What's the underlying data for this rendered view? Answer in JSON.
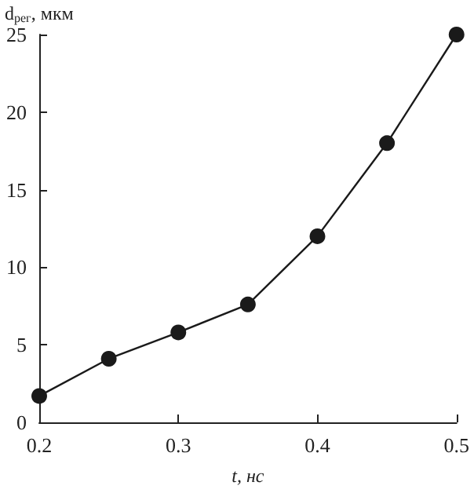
{
  "chart_data": {
    "type": "line",
    "xlabel": "t, нс",
    "ylabel": "d$_{рег}$, мкм",
    "x": [
      0.2,
      0.25,
      0.3,
      0.35,
      0.4,
      0.45,
      0.5
    ],
    "series": [
      {
        "color": "#1a1a1a",
        "values": [
          1.7,
          4.1,
          5.8,
          7.6,
          12,
          18,
          25
        ]
      }
    ],
    "xlim": [
      0.2,
      0.5
    ],
    "xticks": [
      0.2,
      0.3,
      0.4,
      0.5
    ],
    "ylim": [
      0,
      25
    ],
    "yticks": [
      0,
      5,
      10,
      15,
      20,
      25
    ],
    "marker": "circle",
    "line_style": "solid",
    "grid": false
  }
}
